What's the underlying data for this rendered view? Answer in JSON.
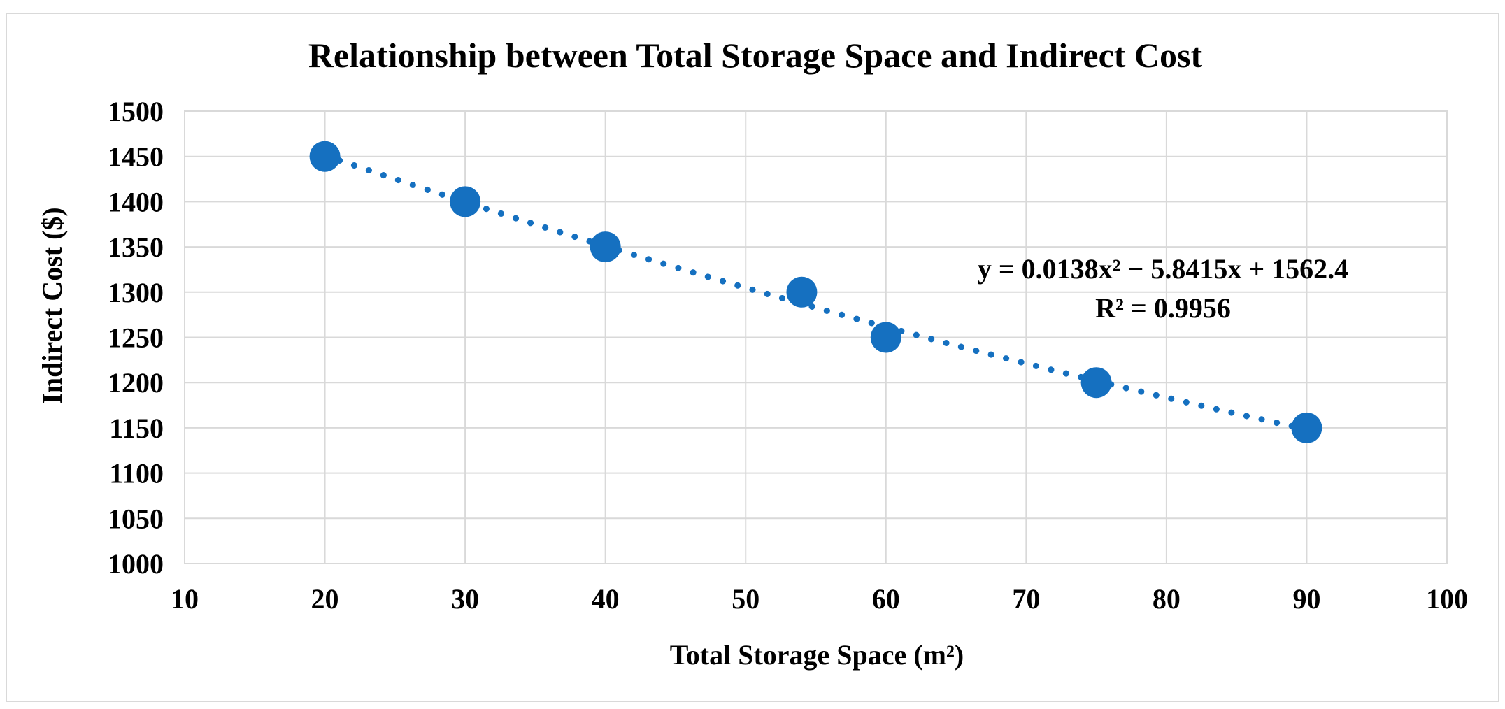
{
  "chart_data": {
    "type": "scatter",
    "title": "Relationship  between Total Storage Space and Indirect Cost",
    "xlabel": "Total Storage Space (m²)",
    "ylabel": "Indirect  Cost ($)",
    "xlim": [
      10,
      100
    ],
    "ylim": [
      1000,
      1500
    ],
    "xticks": [
      10,
      20,
      30,
      40,
      50,
      60,
      70,
      80,
      90,
      100
    ],
    "yticks": [
      1000,
      1050,
      1100,
      1150,
      1200,
      1250,
      1300,
      1350,
      1400,
      1450,
      1500
    ],
    "grid": true,
    "series": [
      {
        "name": "Indirect Cost",
        "color": "#1570c0",
        "points": [
          {
            "x": 20,
            "y": 1450
          },
          {
            "x": 30,
            "y": 1400
          },
          {
            "x": 40,
            "y": 1350
          },
          {
            "x": 54,
            "y": 1300
          },
          {
            "x": 60,
            "y": 1250
          },
          {
            "x": 75,
            "y": 1200
          },
          {
            "x": 90,
            "y": 1150
          }
        ]
      }
    ],
    "trendline": {
      "type": "polynomial",
      "order": 2,
      "coefficients": {
        "a": 0.0138,
        "b": -5.8415,
        "c": 1562.4
      },
      "x_range": [
        20,
        90
      ],
      "style": "dotted",
      "color": "#1570c0",
      "equation_text": "y = 0.0138x² − 5.8415x + 1562.4",
      "r_squared_text": "R² = 0.9956"
    }
  }
}
